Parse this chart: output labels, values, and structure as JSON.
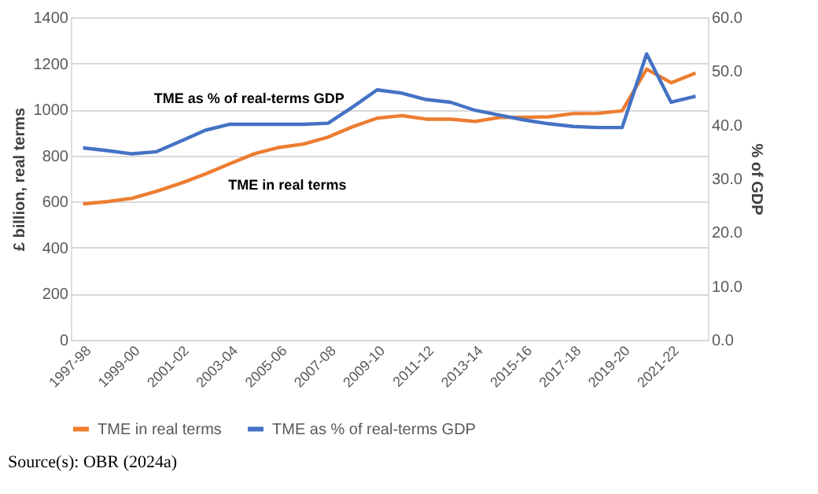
{
  "chart_data": {
    "type": "line",
    "categories": [
      "1997-98",
      null,
      "1999-00",
      null,
      "2001-02",
      null,
      "2003-04",
      null,
      "2005-06",
      null,
      "2007-08",
      null,
      "2009-10",
      null,
      "2011-12",
      null,
      "2013-14",
      null,
      "2015-16",
      null,
      "2017-18",
      null,
      "2019-20",
      null,
      "2021-22",
      null
    ],
    "series": [
      {
        "name": "TME in real terms",
        "color": "#ed7d31",
        "values": [
          590,
          600,
          614,
          645,
          680,
          720,
          765,
          808,
          835,
          850,
          880,
          925,
          962,
          973,
          958,
          958,
          948,
          965,
          966,
          968,
          982,
          983,
          994,
          1175,
          1116,
          1158
        ]
      },
      {
        "name": "TME as % of real-terms GDP",
        "color": "#4472c4",
        "axis": "y2",
        "values": [
          35.7,
          35.2,
          34.6,
          35.0,
          37.0,
          39.0,
          40.1,
          40.1,
          40.1,
          40.1,
          40.3,
          43.3,
          46.5,
          45.9,
          44.7,
          44.2,
          42.7,
          41.8,
          40.9,
          40.2,
          39.7,
          39.5,
          39.5,
          53.2,
          44.2,
          45.3
        ]
      }
    ],
    "ylabel": "£ billion, real terms",
    "y2label": "% of GDP",
    "ylim": [
      0,
      1400
    ],
    "yticks": [
      0,
      200,
      400,
      600,
      800,
      1000,
      1200,
      1400
    ],
    "y2lim": [
      0,
      60
    ],
    "y2ticks": [
      {
        "value": 0,
        "label": "0.0"
      },
      {
        "value": 10,
        "label": "10.0"
      },
      {
        "value": 20,
        "label": "20.0"
      },
      {
        "value": 30,
        "label": "30.0"
      },
      {
        "value": 40,
        "label": "40.0"
      },
      {
        "value": 50,
        "label": "50.0"
      },
      {
        "value": 60,
        "label": "60.0"
      }
    ],
    "grid": "y",
    "legend": "bottom",
    "marker": "none",
    "line_style": "solid",
    "annotations": [
      "TME as % of real-terms GDP",
      "TME in real terms",
      "Source(s): OBR (2024a)"
    ]
  }
}
